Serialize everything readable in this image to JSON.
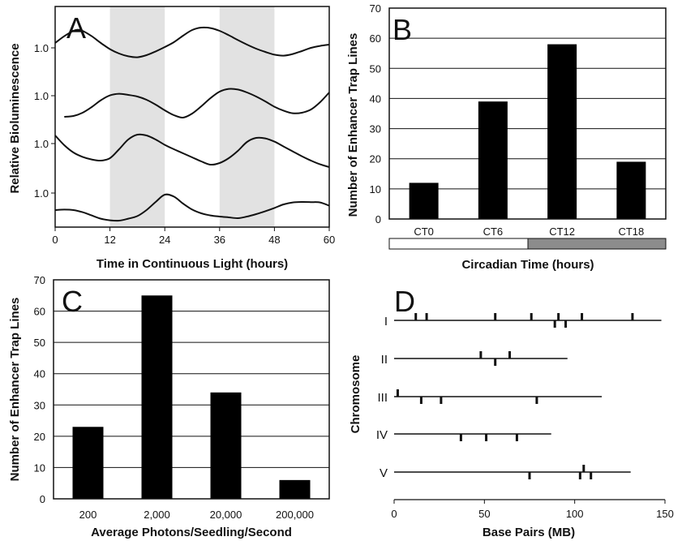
{
  "chart_data": [
    {
      "panel": "A",
      "type": "line",
      "xlabel": "Time in Continuous Light (hours)",
      "ylabel": "Relative Bioluminescence",
      "xlim": [
        0,
        60
      ],
      "x_ticks": [
        "0",
        "12",
        "24",
        "36",
        "48",
        "60"
      ],
      "y_ticks": [
        "1.0",
        "1.0",
        "1.0",
        "1.0"
      ],
      "shaded_intervals": [
        [
          12,
          24
        ],
        [
          36,
          48
        ]
      ],
      "series": [
        {
          "x": [
            0,
            2,
            4,
            5,
            6,
            8,
            10,
            12,
            14,
            16,
            18,
            20,
            22,
            24,
            26,
            28,
            30,
            32,
            34,
            36,
            38,
            40,
            42,
            44,
            46,
            48,
            50,
            52,
            54,
            56,
            58,
            60
          ],
          "y": [
            1.3,
            1.72,
            2.05,
            2.12,
            2.05,
            1.72,
            1.3,
            0.92,
            0.65,
            0.48,
            0.42,
            0.55,
            0.78,
            1.05,
            1.35,
            1.75,
            2.1,
            2.25,
            2.22,
            2.05,
            1.78,
            1.48,
            1.2,
            0.95,
            0.75,
            0.58,
            0.52,
            0.62,
            0.8,
            1.0,
            1.12,
            1.2
          ]
        },
        {
          "x": [
            2,
            4,
            6,
            8,
            10,
            12,
            14,
            16,
            18,
            20,
            22,
            24,
            26,
            28,
            30,
            32,
            34,
            36,
            38,
            40,
            42,
            44,
            46,
            48,
            50,
            52,
            54,
            56,
            58,
            60
          ],
          "y": [
            -0.3,
            -0.25,
            -0.05,
            0.3,
            0.72,
            1.02,
            1.12,
            1.05,
            0.95,
            0.75,
            0.45,
            0.1,
            -0.2,
            -0.35,
            -0.1,
            0.35,
            0.85,
            1.25,
            1.42,
            1.38,
            1.2,
            0.95,
            0.65,
            0.32,
            0.08,
            -0.08,
            -0.05,
            0.15,
            0.6,
            1.2
          ]
        },
        {
          "x": [
            0,
            2,
            4,
            6,
            8,
            10,
            12,
            14,
            16,
            18,
            20,
            22,
            24,
            26,
            28,
            30,
            32,
            34,
            36,
            38,
            40,
            42,
            44,
            46,
            48,
            50,
            52,
            54,
            56,
            58,
            60
          ],
          "y": [
            1.5,
            0.9,
            0.45,
            0.18,
            0.02,
            -0.05,
            0.1,
            0.65,
            1.25,
            1.55,
            1.5,
            1.25,
            0.92,
            0.65,
            0.4,
            0.15,
            -0.1,
            -0.3,
            -0.2,
            0.1,
            0.55,
            1.1,
            1.35,
            1.32,
            1.12,
            0.82,
            0.52,
            0.22,
            -0.05,
            -0.28,
            -0.45
          ]
        },
        {
          "x": [
            0,
            2,
            4,
            6,
            8,
            10,
            12,
            14,
            16,
            18,
            20,
            22,
            24,
            26,
            28,
            30,
            32,
            34,
            36,
            38,
            40,
            42,
            44,
            46,
            48,
            50,
            52,
            54,
            56,
            58,
            60
          ],
          "y": [
            -0.05,
            -0.02,
            -0.05,
            -0.18,
            -0.38,
            -0.58,
            -0.68,
            -0.7,
            -0.58,
            -0.42,
            -0.05,
            0.45,
            0.9,
            0.78,
            0.35,
            -0.02,
            -0.25,
            -0.38,
            -0.45,
            -0.5,
            -0.55,
            -0.45,
            -0.3,
            -0.12,
            0.08,
            0.3,
            0.42,
            0.45,
            0.44,
            0.42,
            0.22
          ]
        }
      ]
    },
    {
      "panel": "B",
      "type": "bar",
      "categories": [
        "CT0",
        "CT6",
        "CT12",
        "CT18"
      ],
      "values": [
        12,
        39,
        58,
        19
      ],
      "xlabel": "Circadian Time (hours)",
      "ylabel": "Number of Enhancer Trap Lines",
      "ylim": [
        0,
        70
      ],
      "y_ticks": [
        "0",
        "10",
        "20",
        "30",
        "40",
        "50",
        "60",
        "70"
      ],
      "grid": true,
      "day_night_bar": {
        "day_color": "#ffffff",
        "night_color": "#8c8c8c"
      }
    },
    {
      "panel": "C",
      "type": "bar",
      "categories": [
        "200",
        "2,000",
        "20,000",
        "200,000"
      ],
      "values": [
        23,
        65,
        34,
        6
      ],
      "xlabel": "Average Photons/Seedling/Second",
      "ylabel": "Number of Enhancer Trap Lines",
      "ylim": [
        0,
        70
      ],
      "y_ticks": [
        "0",
        "10",
        "20",
        "30",
        "40",
        "50",
        "60",
        "70"
      ],
      "grid": true
    },
    {
      "panel": "D",
      "type": "scatter",
      "xlabel": "Base Pairs (MB)",
      "ylabel": "Chromosome",
      "xlim": [
        0,
        150
      ],
      "x_ticks": [
        "0",
        "50",
        "100",
        "150"
      ],
      "chromosomes": [
        {
          "name": "I",
          "length": 148,
          "above": [
            12,
            18,
            56,
            76,
            91,
            104,
            132
          ],
          "below": [
            89,
            95
          ]
        },
        {
          "name": "II",
          "length": 96,
          "above": [
            48,
            64
          ],
          "below": [
            56
          ]
        },
        {
          "name": "III",
          "length": 115,
          "above": [
            2
          ],
          "below": [
            15,
            26,
            79
          ]
        },
        {
          "name": "IV",
          "length": 87,
          "above": [],
          "below": [
            37,
            51,
            68
          ]
        },
        {
          "name": "V",
          "length": 131,
          "above": [
            105
          ],
          "below": [
            75,
            103,
            109
          ]
        }
      ]
    }
  ],
  "panels": {
    "a": "A",
    "b": "B",
    "c": "C",
    "d": "D"
  }
}
